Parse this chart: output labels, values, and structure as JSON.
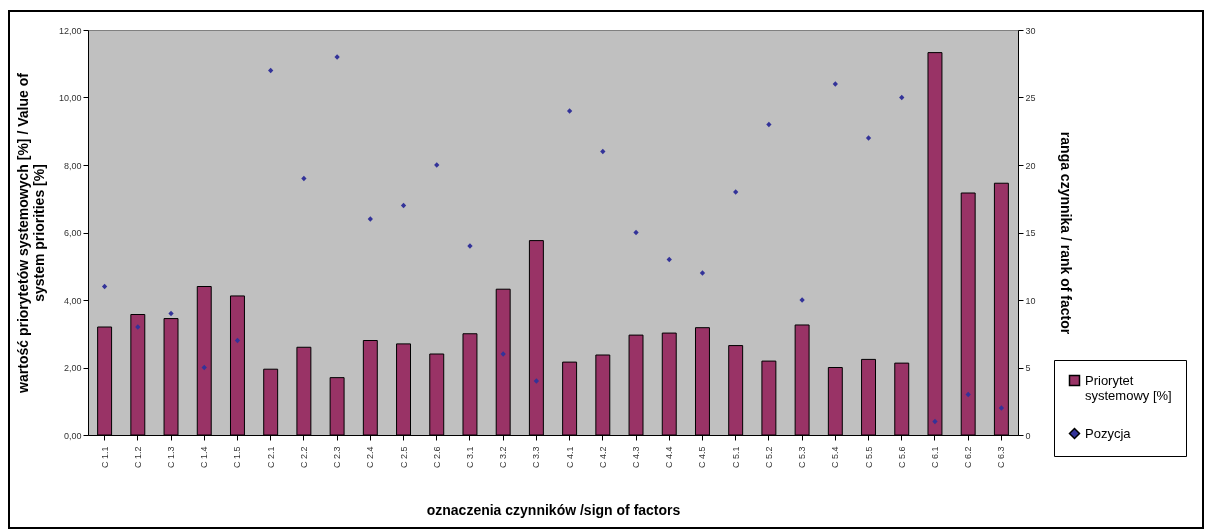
{
  "chart_data": {
    "type": "bar",
    "xlabel": "oznaczenia czynników /sign of factors",
    "ylabel": "wartość priorytetów systemowych [%] / Value of system priorities [%]",
    "y2label": "ranga czynnika / rank of factor",
    "categories": [
      "C 1.1",
      "C 1.2",
      "C 1.3",
      "C 1.4",
      "C 1.5",
      "C 2.1",
      "C 2.2",
      "C 2.3",
      "C 2.4",
      "C 2.5",
      "C 2.6",
      "C 3.1",
      "C 3.2",
      "C 3.3",
      "C 4.1",
      "C 4.2",
      "C 4.3",
      "C 4.4",
      "C 4.5",
      "C 5.1",
      "C 5.2",
      "C 5.3",
      "C 5.4",
      "C 5.5",
      "C 5.6",
      "C 6.1",
      "C 6.2",
      "C 6.3"
    ],
    "series": [
      {
        "name": "Priorytet systemowy [%]",
        "color": "#993366",
        "values": [
          3.2,
          3.57,
          3.45,
          4.4,
          4.12,
          1.95,
          2.6,
          1.7,
          2.8,
          2.7,
          2.4,
          3.0,
          4.32,
          5.76,
          2.16,
          2.37,
          2.96,
          3.02,
          3.18,
          2.65,
          2.19,
          3.26,
          2.0,
          2.24,
          2.13,
          11.33,
          7.17,
          7.46
        ]
      },
      {
        "name": "Pozycja",
        "type": "scatter",
        "axis": "y2",
        "color": "#333399",
        "values": [
          11,
          8,
          9,
          5,
          7,
          27,
          19,
          28,
          16,
          17,
          20,
          14,
          6,
          4,
          24,
          21,
          15,
          13,
          12,
          18,
          23,
          10,
          26,
          22,
          25,
          1,
          3,
          2
        ]
      }
    ],
    "ylim": [
      0,
      12
    ],
    "yticks": [
      {
        "value": 0,
        "label": "0,00"
      },
      {
        "value": 2,
        "label": "2,00"
      },
      {
        "value": 4,
        "label": "4,00"
      },
      {
        "value": 6,
        "label": "6,00"
      },
      {
        "value": 8,
        "label": "8,00"
      },
      {
        "value": 10,
        "label": "10,00"
      },
      {
        "value": 12,
        "label": "12,00"
      }
    ],
    "y2lim": [
      0,
      30
    ],
    "y2ticks": [
      0,
      5,
      10,
      15,
      20,
      25,
      30
    ],
    "marker": "diamond",
    "legend": "bottom right"
  }
}
